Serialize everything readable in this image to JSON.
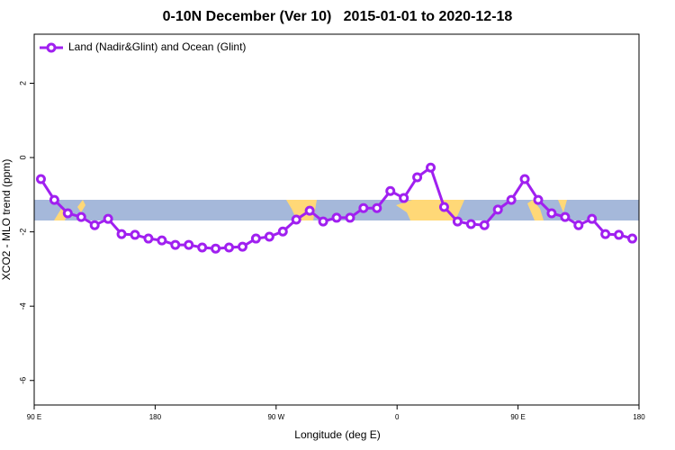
{
  "chart_data": {
    "type": "line",
    "title": "0-10N December (Ver 10)   2015-01-01 to 2020-12-18",
    "xlabel": "Longitude (deg E)",
    "ylabel": "XCO2 - MLO trend (ppm)",
    "x": [
      95,
      105,
      115,
      125,
      135,
      145,
      155,
      165,
      175,
      185,
      195,
      205,
      215,
      225,
      235,
      245,
      255,
      265,
      275,
      285,
      295,
      305,
      315,
      325,
      335,
      345,
      355,
      365,
      375,
      385,
      395,
      405,
      415,
      425,
      435,
      445,
      455,
      465,
      475,
      485,
      495,
      505,
      515,
      525,
      535
    ],
    "series": [
      {
        "name": "Land (Nadir&Glint) and Ocean (Glint)",
        "color": "#a020f0",
        "values": [
          -0.58,
          -1.14,
          -1.5,
          -1.6,
          -1.82,
          -1.65,
          -2.06,
          -2.08,
          -2.18,
          -2.23,
          -2.35,
          -2.35,
          -2.42,
          -2.45,
          -2.42,
          -2.4,
          -2.18,
          -2.13,
          -1.99,
          -1.67,
          -1.43,
          -1.72,
          -1.62,
          -1.62,
          -1.36,
          -1.36,
          -0.9,
          -1.09,
          -0.53,
          -0.27,
          -1.33,
          -1.72,
          -1.79,
          -1.82,
          -1.4,
          -1.14,
          -0.58,
          -1.14,
          -1.5,
          -1.6,
          -1.82,
          -1.65,
          -2.06,
          -2.08,
          -2.18
        ]
      }
    ],
    "xlim": [
      90,
      540
    ],
    "xticks": [
      {
        "value": 90,
        "label": "90 E"
      },
      180,
      {
        "value": 270,
        "label": "90 W"
      },
      {
        "value": 360,
        "label": "0"
      },
      {
        "value": 450,
        "label": "90 E"
      },
      {
        "value": 540,
        "label": "180"
      }
    ],
    "ylim": [
      -6.66,
      3.32
    ],
    "yticks": [
      -6,
      -4,
      -2,
      0,
      2
    ],
    "legend": "top-left"
  }
}
